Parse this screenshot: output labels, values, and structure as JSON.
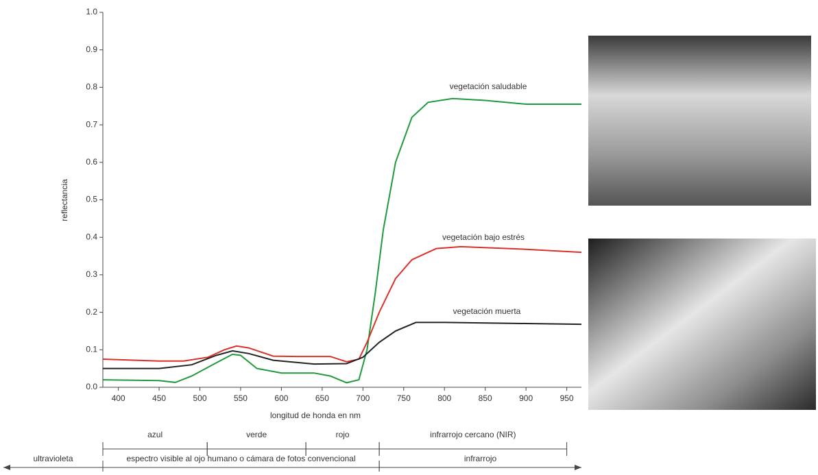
{
  "chart_data": {
    "type": "line",
    "ylabel": "reflectancia",
    "xlabel": "longitud de honda en nm",
    "xlim": [
      381,
      968
    ],
    "ylim": [
      0,
      1
    ],
    "xticks": [
      400,
      450,
      500,
      550,
      600,
      650,
      700,
      750,
      800,
      850,
      900,
      950
    ],
    "yticks": [
      {
        "value": 0,
        "label": "0.0"
      },
      0.1,
      0.2,
      0.3,
      0.4,
      0.5,
      0.6,
      0.7,
      0.8,
      0.9,
      {
        "value": 1,
        "label": "1.0"
      }
    ],
    "series": [
      {
        "name": "vegetación saludable",
        "color": "#1e9a3c",
        "x": [
          381,
          450,
          470,
          490,
          520,
          540,
          550,
          570,
          600,
          640,
          660,
          680,
          695,
          705,
          715,
          725,
          740,
          760,
          780,
          810,
          850,
          900,
          968
        ],
        "values": [
          0.02,
          0.018,
          0.013,
          0.03,
          0.065,
          0.088,
          0.085,
          0.05,
          0.038,
          0.038,
          0.03,
          0.012,
          0.02,
          0.1,
          0.25,
          0.42,
          0.6,
          0.72,
          0.76,
          0.77,
          0.765,
          0.755,
          0.755
        ]
      },
      {
        "name": "vegetación bajo estrés",
        "color": "#d9302a",
        "x": [
          381,
          450,
          480,
          510,
          530,
          545,
          560,
          590,
          620,
          660,
          680,
          695,
          705,
          720,
          740,
          760,
          790,
          820,
          900,
          968
        ],
        "values": [
          0.075,
          0.07,
          0.07,
          0.08,
          0.1,
          0.11,
          0.105,
          0.083,
          0.082,
          0.082,
          0.068,
          0.075,
          0.12,
          0.2,
          0.29,
          0.34,
          0.37,
          0.375,
          0.368,
          0.36
        ]
      },
      {
        "name": "vegetación muerta",
        "color": "#222222",
        "x": [
          381,
          450,
          490,
          520,
          540,
          560,
          590,
          640,
          680,
          700,
          720,
          740,
          765,
          800,
          900,
          968
        ],
        "values": [
          0.05,
          0.05,
          0.06,
          0.085,
          0.097,
          0.09,
          0.072,
          0.062,
          0.063,
          0.08,
          0.12,
          0.15,
          0.173,
          0.173,
          0.17,
          0.168
        ]
      }
    ],
    "bands": [
      {
        "label": "azul",
        "range": [
          381,
          509
        ]
      },
      {
        "label": "verde",
        "range": [
          509,
          630
        ]
      },
      {
        "label": "rojo",
        "range": [
          630,
          720
        ]
      },
      {
        "label": "infrarrojo cercano (NIR)",
        "range": [
          720,
          950
        ]
      }
    ],
    "regions": [
      {
        "label": "ultravioleta",
        "range": [
          null,
          381
        ]
      },
      {
        "label": "espectro visible al ojo humano o cámara de fotos convencional",
        "range": [
          381,
          720
        ]
      },
      {
        "label": "infrarrojo",
        "range": [
          720,
          null
        ]
      }
    ]
  }
}
